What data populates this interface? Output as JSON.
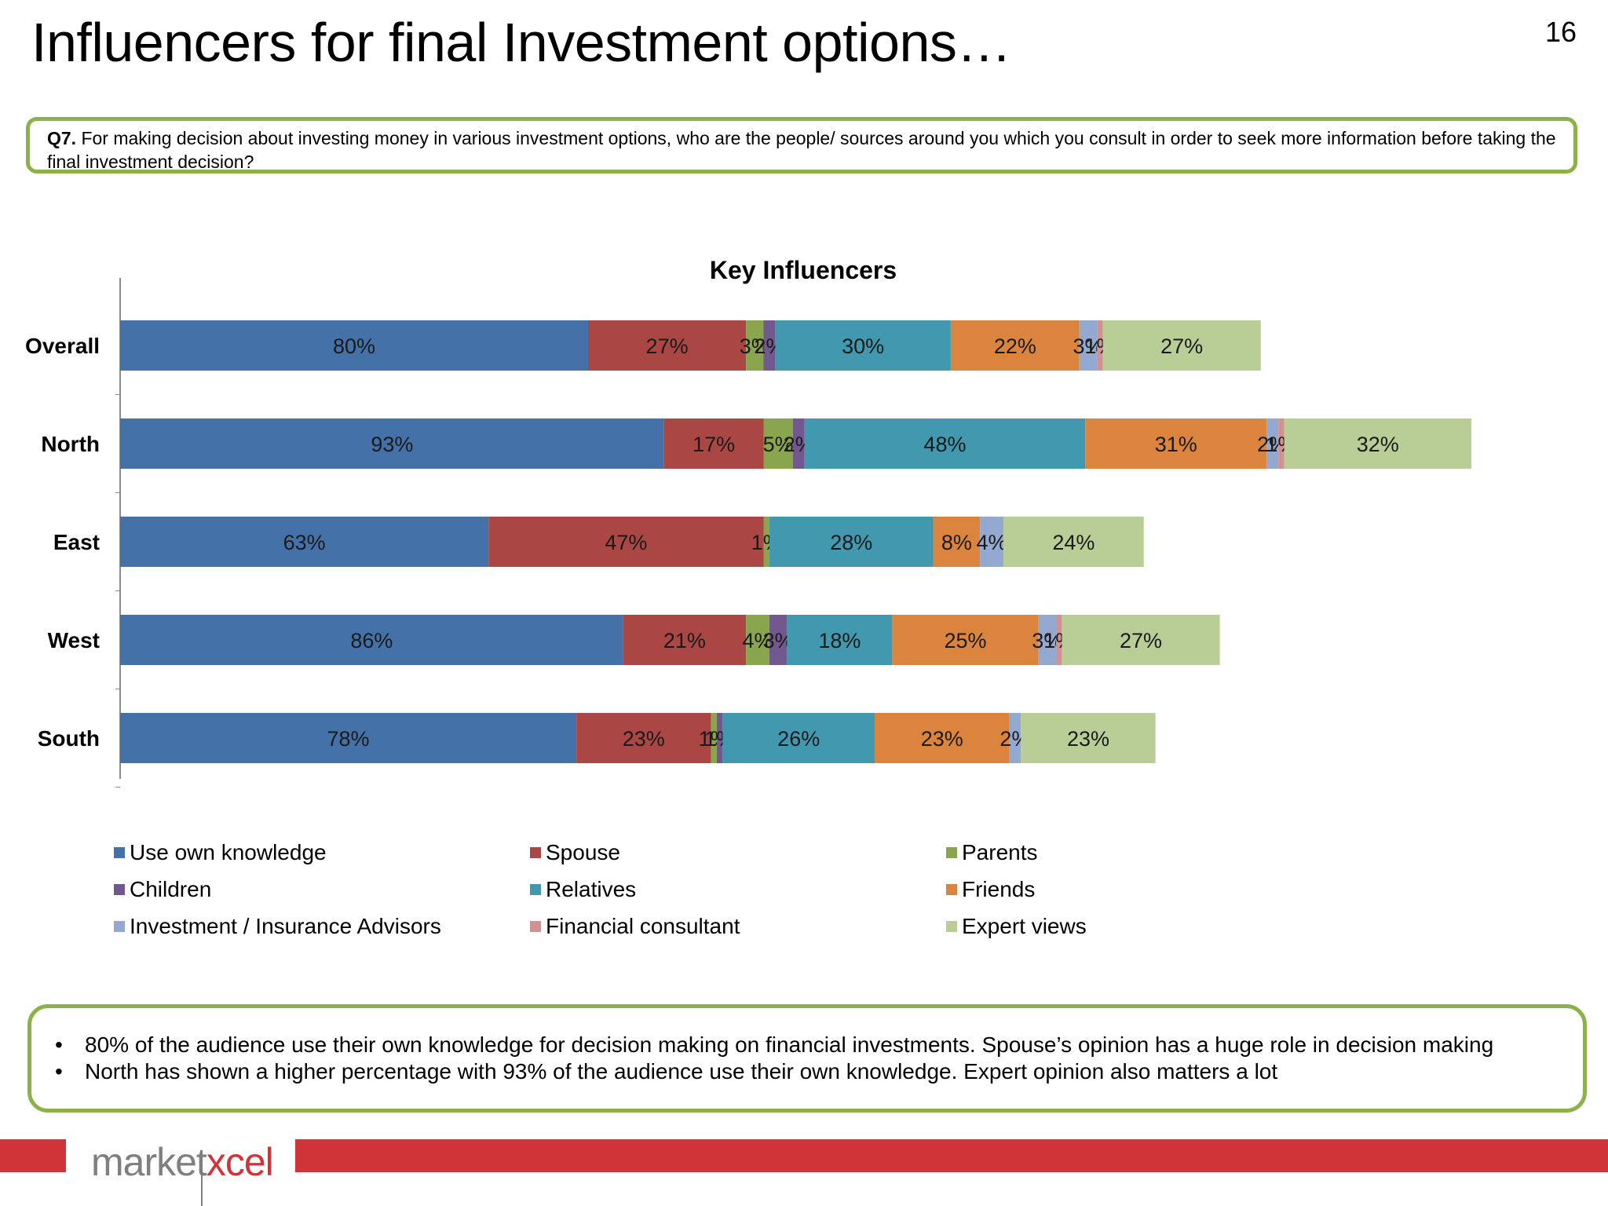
{
  "slide": {
    "title": "Influencers for final Investment options…",
    "page_number": "16"
  },
  "question": {
    "label": "Q7.",
    "text": " For making decision about investing money in various investment options, who are the people/ sources around you  which you consult in order to seek more information before taking the final investment decision?"
  },
  "chart_data": {
    "type": "bar",
    "orientation": "horizontal",
    "stacked": true,
    "title": "Key Influencers",
    "categories": [
      "Overall",
      "North",
      "East",
      "West",
      "South"
    ],
    "series": [
      {
        "name": "Use own knowledge",
        "color": "#4472a8",
        "values": [
          80,
          93,
          63,
          86,
          78
        ]
      },
      {
        "name": "Spouse",
        "color": "#aa4644",
        "values": [
          27,
          17,
          47,
          21,
          23
        ]
      },
      {
        "name": "Parents",
        "color": "#89a54e",
        "values": [
          3,
          5,
          1,
          4,
          1
        ]
      },
      {
        "name": "Children",
        "color": "#71588f",
        "values": [
          2,
          2,
          0,
          3,
          1
        ]
      },
      {
        "name": "Relatives",
        "color": "#4198af",
        "values": [
          30,
          48,
          28,
          18,
          26
        ]
      },
      {
        "name": "Friends",
        "color": "#db843d",
        "values": [
          22,
          31,
          8,
          25,
          23
        ]
      },
      {
        "name": "Investment / Insurance Advisors",
        "color": "#93a9cf",
        "values": [
          3,
          2,
          4,
          3,
          2
        ]
      },
      {
        "name": "Financial consultant",
        "color": "#d19392",
        "values": [
          1,
          1,
          0,
          1,
          0
        ]
      },
      {
        "name": "Expert views",
        "color": "#b9cd96",
        "values": [
          27,
          32,
          24,
          27,
          23
        ]
      }
    ],
    "data_label_format": "{v}%",
    "legend_position": "bottom",
    "grid": false
  },
  "insights": [
    "80% of the audience use their own knowledge for decision making on financial investments. Spouse’s  opinion has a huge role in decision making",
    "North has shown a higher percentage with 93% of the audience use their own knowledge. Expert opinion also matters a lot"
  ],
  "bullet_char": "•",
  "footer": {
    "logo_part1": "market",
    "logo_part2": "xcel"
  }
}
